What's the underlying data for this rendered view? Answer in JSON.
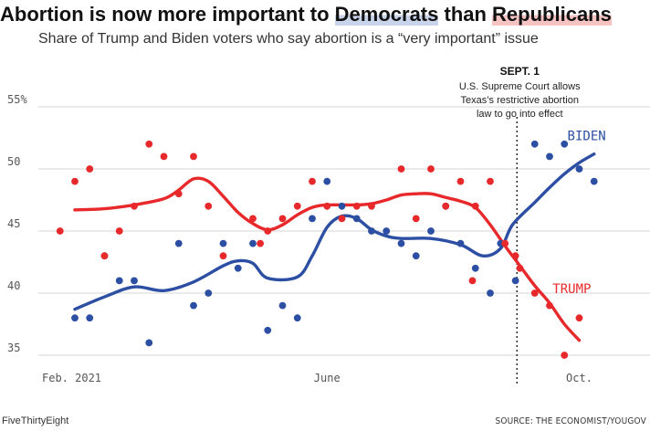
{
  "title": {
    "before": "Abortion is now more important to ",
    "democrats": "Democrats",
    "middle": " than ",
    "republicans": "Republicans"
  },
  "subtitle": "Share of Trump and Biden voters who say abortion is a “very important” issue",
  "footer": {
    "left": "FiveThirtyEight",
    "right": "SOURCE: THE ECONOMIST/YOUGOV"
  },
  "colors": {
    "biden": "#2c4fa3",
    "trump": "#e8292b",
    "grid": "#d4d4d4"
  },
  "chart_data": {
    "type": "scatter",
    "ylim": [
      35,
      56
    ],
    "y_ticks": [
      {
        "value": 55,
        "label": "55%"
      },
      {
        "value": 50,
        "label": "50"
      },
      {
        "value": 45,
        "label": "45"
      },
      {
        "value": 40,
        "label": "40"
      },
      {
        "value": 35,
        "label": "35"
      }
    ],
    "x_ticks": [
      {
        "x": 1,
        "label": "Feb. 2021"
      },
      {
        "x": 19,
        "label": "June"
      },
      {
        "x": 36,
        "label": "Oct."
      }
    ],
    "xlim": [
      0,
      37.8
    ],
    "annotation": {
      "x": 31.8,
      "title": "SEPT. 1",
      "lines": [
        "U.S. Supreme Court allows",
        "Texas’s restrictive abortion",
        "law to go into effect"
      ]
    },
    "series": [
      {
        "name": "BIDEN",
        "color": "#2c4fa3",
        "points": [
          [
            2,
            38
          ],
          [
            3,
            38
          ],
          [
            4,
            43
          ],
          [
            5,
            41
          ],
          [
            6,
            41
          ],
          [
            7,
            36
          ],
          [
            9,
            44
          ],
          [
            10,
            39
          ],
          [
            11,
            40
          ],
          [
            12,
            44
          ],
          [
            13,
            42
          ],
          [
            14,
            44
          ],
          [
            15,
            37
          ],
          [
            16,
            39
          ],
          [
            17,
            38
          ],
          [
            18,
            46
          ],
          [
            19,
            49
          ],
          [
            20,
            47
          ],
          [
            21,
            46
          ],
          [
            22,
            45
          ],
          [
            23,
            45
          ],
          [
            24,
            44
          ],
          [
            25,
            43
          ],
          [
            26,
            45
          ],
          [
            27,
            47
          ],
          [
            28,
            44
          ],
          [
            29,
            42
          ],
          [
            30,
            40
          ],
          [
            30.7,
            44
          ],
          [
            31.7,
            41
          ],
          [
            33,
            52
          ],
          [
            34,
            51
          ],
          [
            35,
            52
          ],
          [
            36,
            50
          ],
          [
            37,
            49
          ]
        ],
        "trend": [
          [
            2,
            38.7
          ],
          [
            4,
            39.7
          ],
          [
            6,
            40.5
          ],
          [
            8,
            40.2
          ],
          [
            10,
            40.9
          ],
          [
            12,
            42.2
          ],
          [
            13,
            42.6
          ],
          [
            14,
            42.4
          ],
          [
            15,
            41.2
          ],
          [
            17,
            41.3
          ],
          [
            18,
            43
          ],
          [
            19,
            45.3
          ],
          [
            20,
            46.2
          ],
          [
            21,
            46
          ],
          [
            22,
            45.1
          ],
          [
            23,
            44.6
          ],
          [
            24,
            44.4
          ],
          [
            26,
            44.4
          ],
          [
            28,
            43.9
          ],
          [
            29.5,
            43
          ],
          [
            30.7,
            43.6
          ],
          [
            31.5,
            45.5
          ],
          [
            33,
            47.3
          ],
          [
            34,
            48.5
          ],
          [
            35,
            49.6
          ],
          [
            36,
            50.5
          ],
          [
            37,
            51.2
          ]
        ],
        "label": "BIDEN",
        "label_at": [
          36.5,
          52.3
        ]
      },
      {
        "name": "TRUMP",
        "color": "#e8292b",
        "points": [
          [
            1,
            45
          ],
          [
            2,
            49
          ],
          [
            3,
            50
          ],
          [
            4,
            43
          ],
          [
            5,
            45
          ],
          [
            6,
            47
          ],
          [
            7,
            52
          ],
          [
            8,
            51
          ],
          [
            9,
            48
          ],
          [
            10,
            51
          ],
          [
            11,
            47
          ],
          [
            12,
            43
          ],
          [
            14,
            46
          ],
          [
            14.5,
            44
          ],
          [
            15,
            45
          ],
          [
            16,
            46
          ],
          [
            17,
            47
          ],
          [
            18,
            49
          ],
          [
            19,
            47
          ],
          [
            20,
            46
          ],
          [
            21,
            47
          ],
          [
            22,
            47
          ],
          [
            24,
            50
          ],
          [
            25,
            46
          ],
          [
            26,
            50
          ],
          [
            27,
            47
          ],
          [
            28,
            49
          ],
          [
            28.8,
            41
          ],
          [
            29,
            47
          ],
          [
            30,
            49
          ],
          [
            31,
            44
          ],
          [
            31.7,
            43
          ],
          [
            32,
            42
          ],
          [
            33,
            40
          ],
          [
            34,
            39
          ],
          [
            35,
            35
          ],
          [
            36,
            38
          ]
        ],
        "trend": [
          [
            2,
            46.7
          ],
          [
            4,
            46.8
          ],
          [
            6,
            47.1
          ],
          [
            8,
            47.6
          ],
          [
            9,
            48.3
          ],
          [
            10,
            49.2
          ],
          [
            11,
            49
          ],
          [
            12,
            47.8
          ],
          [
            13,
            46.5
          ],
          [
            14,
            45.6
          ],
          [
            15,
            45.1
          ],
          [
            16,
            45.5
          ],
          [
            17,
            46.3
          ],
          [
            18,
            46.9
          ],
          [
            19,
            47.1
          ],
          [
            21,
            47.1
          ],
          [
            22,
            47.2
          ],
          [
            23,
            47.5
          ],
          [
            24,
            47.9
          ],
          [
            25,
            48
          ],
          [
            26,
            48
          ],
          [
            27,
            47.7
          ],
          [
            28,
            47.4
          ],
          [
            29,
            46.9
          ],
          [
            30,
            45.5
          ],
          [
            31,
            43.8
          ],
          [
            32,
            42.2
          ],
          [
            33,
            40.6
          ],
          [
            34,
            39.2
          ],
          [
            35,
            37.5
          ],
          [
            36,
            36.2
          ]
        ],
        "label": "TRUMP",
        "label_at": [
          35.5,
          40
        ]
      }
    ]
  }
}
